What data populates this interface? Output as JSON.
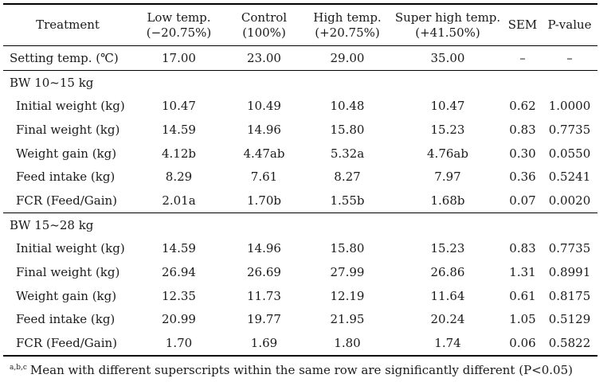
{
  "table": {
    "headers": [
      {
        "line1": "Treatment",
        "line2": ""
      },
      {
        "line1": "Low temp.",
        "line2": "(−20.75%)"
      },
      {
        "line1": "Control",
        "line2": "(100%)"
      },
      {
        "line1": "High temp.",
        "line2": "(+20.75%)"
      },
      {
        "line1": "Super high temp.",
        "line2": "(+41.50%)"
      },
      {
        "line1": "SEM",
        "line2": ""
      },
      {
        "line1": "P-value",
        "line2": ""
      }
    ],
    "setting_row": [
      "Setting temp. (℃)",
      "17.00",
      "23.00",
      "29.00",
      "35.00",
      "–",
      "–"
    ],
    "groups": [
      {
        "title": "BW 10~15 kg",
        "rows": [
          [
            "Initial weight (kg)",
            "10.47",
            "10.49",
            "10.48",
            "10.47",
            "0.62",
            "1.0000"
          ],
          [
            "Final weight (kg)",
            "14.59",
            "14.96",
            "15.80",
            "15.23",
            "0.83",
            "0.7735"
          ],
          [
            "Weight gain (kg)",
            "4.12b",
            "4.47ab",
            "5.32a",
            "4.76ab",
            "0.30",
            "0.0550"
          ],
          [
            "Feed intake (kg)",
            "8.29",
            "7.61",
            "8.27",
            "7.97",
            "0.36",
            "0.5241"
          ],
          [
            "FCR (Feed/Gain)",
            "2.01a",
            "1.70b",
            "1.55b",
            "1.68b",
            "0.07",
            "0.0020"
          ]
        ]
      },
      {
        "title": "BW 15~28 kg",
        "rows": [
          [
            "Initial weight (kg)",
            "14.59",
            "14.96",
            "15.80",
            "15.23",
            "0.83",
            "0.7735"
          ],
          [
            "Final weight (kg)",
            "26.94",
            "26.69",
            "27.99",
            "26.86",
            "1.31",
            "0.8991"
          ],
          [
            "Weight gain (kg)",
            "12.35",
            "11.73",
            "12.19",
            "11.64",
            "0.61",
            "0.8175"
          ],
          [
            "Feed intake (kg)",
            "20.99",
            "19.77",
            "21.95",
            "20.24",
            "1.05",
            "0.5129"
          ],
          [
            "FCR (Feed/Gain)",
            "1.70",
            "1.69",
            "1.80",
            "1.74",
            "0.06",
            "0.5822"
          ]
        ]
      }
    ]
  },
  "footnote": {
    "marker": "a,b,c",
    "text": "Mean with different superscripts within the same row are significantly different (P<0.05)"
  }
}
